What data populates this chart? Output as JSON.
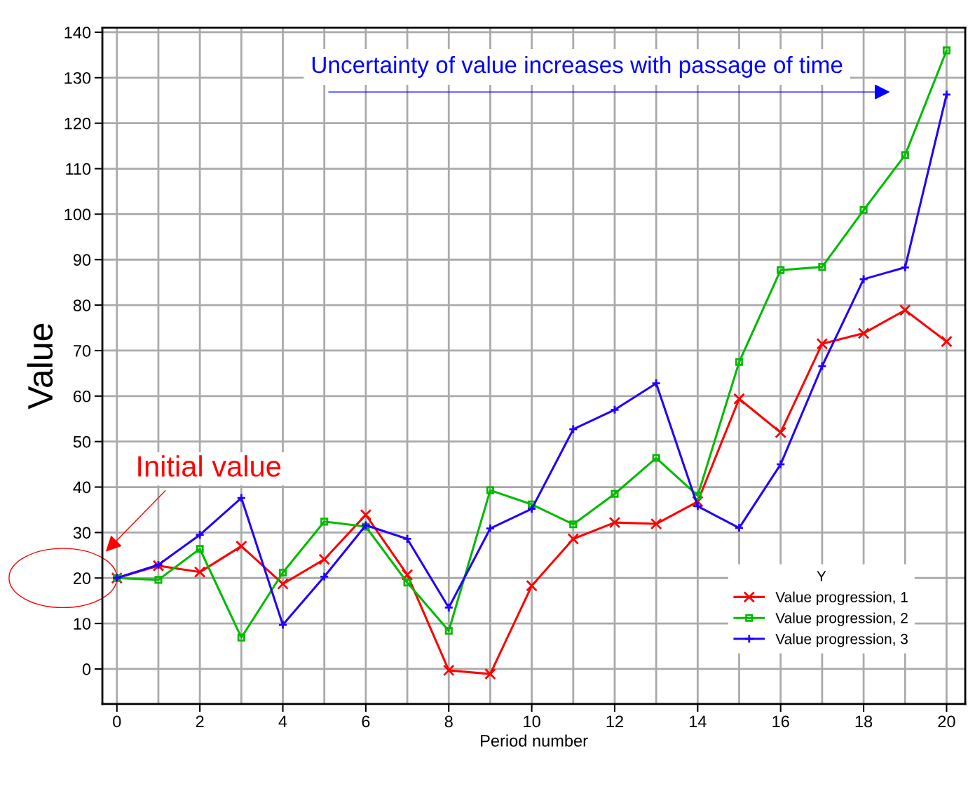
{
  "chart_data": {
    "type": "line",
    "xlabel": "Period number",
    "ylabel": "Value",
    "legend_title": "Y",
    "x": [
      0,
      1,
      2,
      3,
      4,
      5,
      6,
      7,
      8,
      9,
      10,
      11,
      12,
      13,
      14,
      15,
      16,
      17,
      18,
      19,
      20
    ],
    "series": [
      {
        "name": "Value progression, 1",
        "color": "#ff0000",
        "marker": "cross",
        "values": [
          20,
          22.7,
          21.3,
          27.0,
          18.7,
          24.1,
          33.9,
          20.7,
          -0.3,
          -1.1,
          18.3,
          28.6,
          32.2,
          31.9,
          36.8,
          59.4,
          52.0,
          71.5,
          73.8,
          78.9,
          72.0
        ]
      },
      {
        "name": "Value progression, 2",
        "color": "#00bb00",
        "marker": "square",
        "values": [
          20,
          19.6,
          26.4,
          6.9,
          21.2,
          32.4,
          31.3,
          19.0,
          8.4,
          39.3,
          36.2,
          31.8,
          38.5,
          46.4,
          38.1,
          67.5,
          87.7,
          88.4,
          100.9,
          113.0,
          136.0
        ]
      },
      {
        "name": "Value progression, 3",
        "color": "#2200ff",
        "marker": "plus",
        "values": [
          20,
          22.9,
          29.5,
          37.6,
          9.7,
          20.3,
          31.6,
          28.6,
          13.5,
          30.9,
          35.2,
          52.7,
          57.0,
          62.8,
          35.8,
          31.0,
          45.0,
          66.6,
          85.7,
          88.3,
          126.3
        ]
      }
    ],
    "xlim": [
      -0.35,
      20.45
    ],
    "ylim": [
      -7.7,
      141
    ],
    "xticks": [
      0,
      2,
      4,
      6,
      8,
      10,
      12,
      14,
      16,
      18,
      20
    ],
    "yticks": [
      0,
      10,
      20,
      30,
      40,
      50,
      60,
      70,
      80,
      90,
      100,
      110,
      120,
      130,
      140
    ],
    "grid": true,
    "legend": "bottom right",
    "line_style": "solid",
    "annotations": [
      "Uncertainty of value increases with passage of time",
      "Initial value"
    ]
  }
}
